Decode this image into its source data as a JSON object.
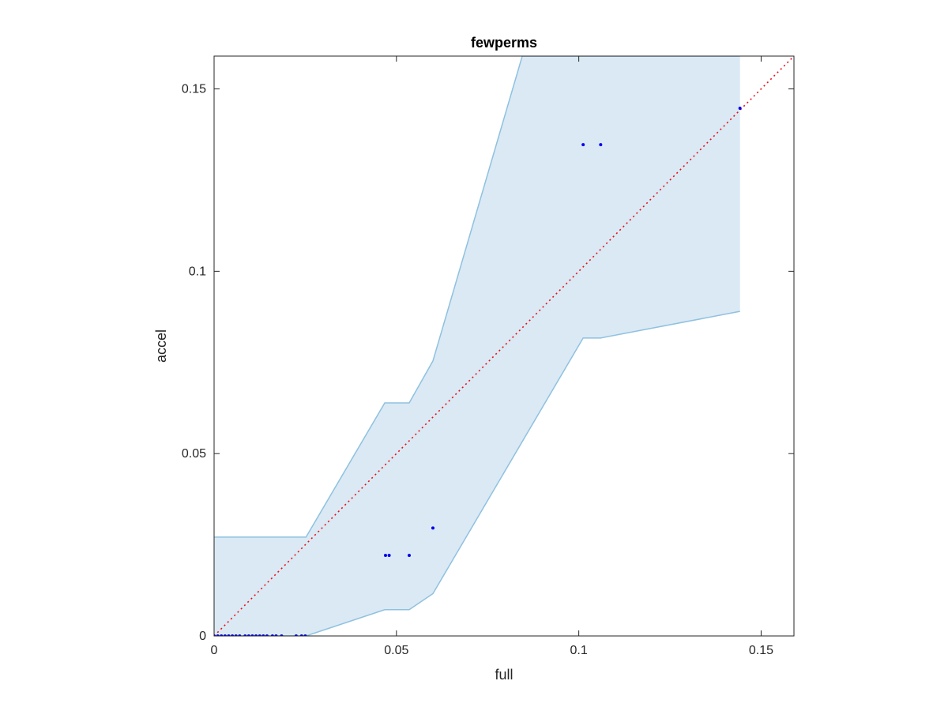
{
  "chart_data": {
    "type": "scatter",
    "title": "fewperms",
    "xlabel": "full",
    "ylabel": "accel",
    "xlim": [
      0,
      0.159
    ],
    "ylim": [
      0,
      0.159
    ],
    "xticks": [
      0,
      0.05,
      0.1,
      0.15
    ],
    "yticks": [
      0,
      0.05,
      0.1,
      0.15
    ],
    "xtick_labels": [
      "0",
      "0.05",
      "0.1",
      "0.15"
    ],
    "ytick_labels": [
      "0",
      "0.05",
      "0.1",
      "0.15"
    ],
    "grid": false,
    "colors": {
      "points": "#0000ee",
      "band_fill": "#dae9f4",
      "band_edge": "#8fc1e0",
      "reference_line": "#e8101a",
      "axes": "#262626"
    },
    "points": [
      {
        "x": 0.0,
        "y": 0.0
      },
      {
        "x": 0.001,
        "y": 0.0
      },
      {
        "x": 0.002,
        "y": 0.0
      },
      {
        "x": 0.003,
        "y": 0.0
      },
      {
        "x": 0.004,
        "y": 0.0
      },
      {
        "x": 0.005,
        "y": 0.0
      },
      {
        "x": 0.006,
        "y": 0.0
      },
      {
        "x": 0.007,
        "y": 0.0
      },
      {
        "x": 0.0085,
        "y": 0.0
      },
      {
        "x": 0.0095,
        "y": 0.0
      },
      {
        "x": 0.0105,
        "y": 0.0
      },
      {
        "x": 0.0115,
        "y": 0.0
      },
      {
        "x": 0.0125,
        "y": 0.0
      },
      {
        "x": 0.0135,
        "y": 0.0
      },
      {
        "x": 0.0145,
        "y": 0.0
      },
      {
        "x": 0.016,
        "y": 0.0
      },
      {
        "x": 0.017,
        "y": 0.0
      },
      {
        "x": 0.0185,
        "y": 0.0
      },
      {
        "x": 0.0225,
        "y": 0.0
      },
      {
        "x": 0.024,
        "y": 0.0
      },
      {
        "x": 0.025,
        "y": 0.0
      },
      {
        "x": 0.047,
        "y": 0.0221
      },
      {
        "x": 0.048,
        "y": 0.0221
      },
      {
        "x": 0.0535,
        "y": 0.0221
      },
      {
        "x": 0.06,
        "y": 0.0296
      },
      {
        "x": 0.1012,
        "y": 0.1347
      },
      {
        "x": 0.106,
        "y": 0.1347
      },
      {
        "x": 0.1442,
        "y": 0.1447
      }
    ],
    "band_upper": [
      {
        "x": 0.0,
        "y": 0.0271
      },
      {
        "x": 0.0252,
        "y": 0.0271
      },
      {
        "x": 0.0468,
        "y": 0.0639
      },
      {
        "x": 0.0535,
        "y": 0.0639
      },
      {
        "x": 0.06,
        "y": 0.0754
      },
      {
        "x": 0.0845,
        "y": 0.159
      },
      {
        "x": 0.1442,
        "y": 0.159
      }
    ],
    "band_lower": [
      {
        "x": 0.1442,
        "y": 0.089
      },
      {
        "x": 0.106,
        "y": 0.0817
      },
      {
        "x": 0.1012,
        "y": 0.0817
      },
      {
        "x": 0.06,
        "y": 0.0116
      },
      {
        "x": 0.0535,
        "y": 0.0072
      },
      {
        "x": 0.0468,
        "y": 0.0072
      },
      {
        "x": 0.0252,
        "y": 0.0
      },
      {
        "x": 0.0,
        "y": 0.0
      }
    ],
    "reference_line": {
      "x": [
        0,
        0.159
      ],
      "y": [
        0,
        0.159
      ]
    }
  }
}
